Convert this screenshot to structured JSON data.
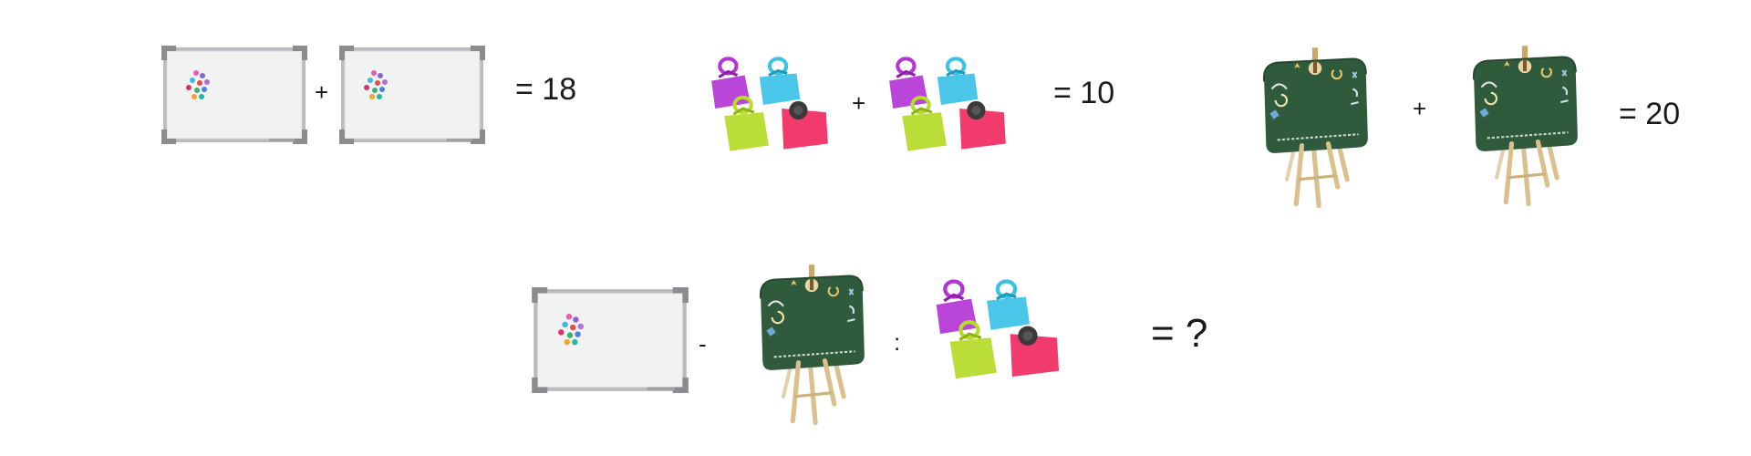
{
  "puzzle": {
    "equations": [
      {
        "items": [
          "whiteboard",
          "whiteboard"
        ],
        "operator": "+",
        "result": "= 18"
      },
      {
        "items": [
          "binder-clips",
          "binder-clips"
        ],
        "operator": "+",
        "result": "= 10"
      },
      {
        "items": [
          "chalkboard-easel",
          "chalkboard-easel"
        ],
        "operator": "+",
        "result": "= 20"
      }
    ],
    "question": {
      "items": [
        "whiteboard",
        "chalkboard-easel",
        "binder-clips"
      ],
      "operators": [
        "-",
        ":"
      ],
      "result": "= ?"
    }
  },
  "colors": {
    "text": "#1a1a1a",
    "whiteboard_frame": "#b9bbbe",
    "whiteboard_corner": "#8a8c8f",
    "whiteboard_surface": "#f1f2f2",
    "chalkboard": "#2f5a3c",
    "easel_wood": "#d9c08c",
    "clip_purple": "#b335d6",
    "clip_cyan": "#39c1e6",
    "clip_lime": "#b6db2a",
    "clip_red": "#ef2f63"
  }
}
